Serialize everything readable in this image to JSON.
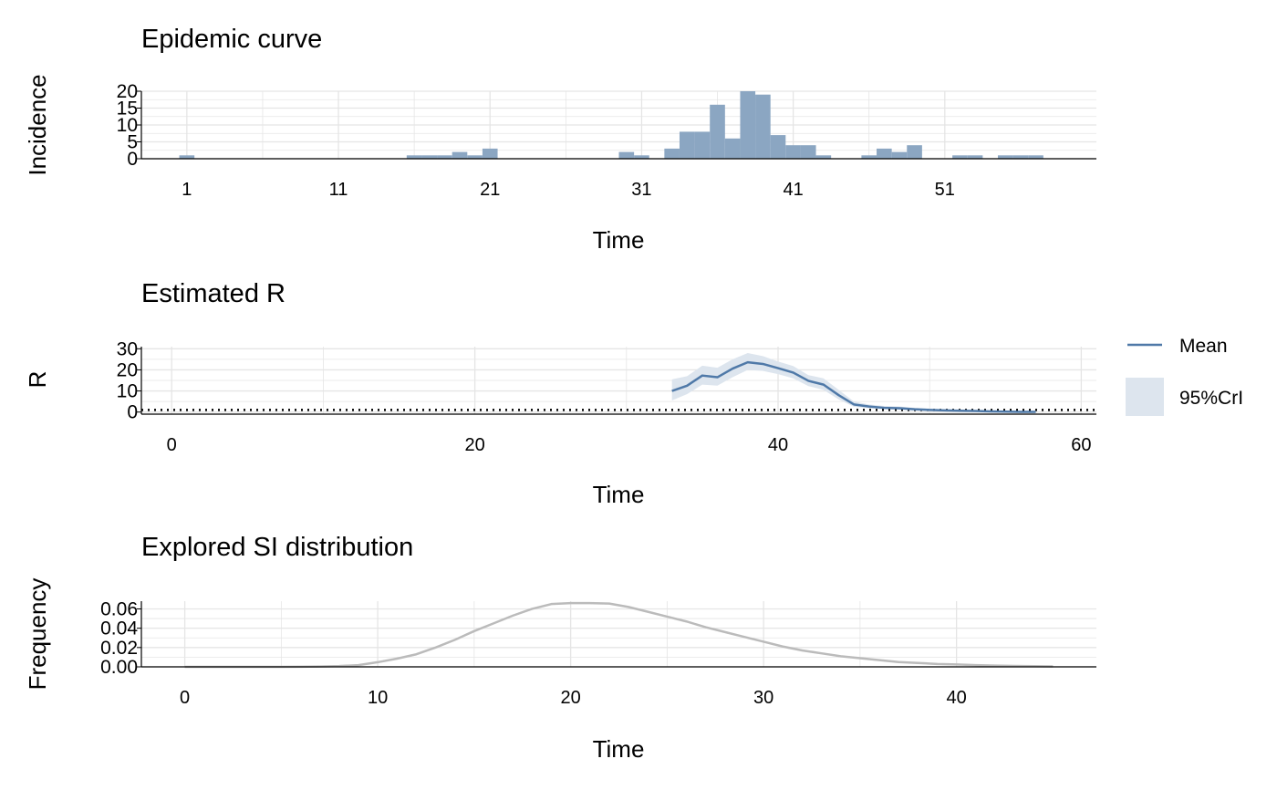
{
  "colors": {
    "bar": "#8ba6c2",
    "mean_line": "#4f79a8",
    "cri_band": "#dde5ee",
    "si_line": "#bbbbbb",
    "grid": "#e5e5e5",
    "axis": "#000000"
  },
  "chart_data": [
    {
      "type": "bar",
      "title": "Epidemic curve",
      "xlabel": "Time",
      "ylabel": "Incidence",
      "xlim": [
        -2,
        61
      ],
      "ylim": [
        0,
        20
      ],
      "x_ticks": [
        1,
        11,
        21,
        31,
        41,
        51
      ],
      "y_ticks": [
        0,
        5,
        10,
        15,
        20
      ],
      "grid": true,
      "x": [
        1,
        2,
        3,
        4,
        5,
        6,
        7,
        8,
        9,
        10,
        11,
        12,
        13,
        14,
        15,
        16,
        17,
        18,
        19,
        20,
        21,
        22,
        23,
        24,
        25,
        26,
        27,
        28,
        29,
        30,
        31,
        32,
        33,
        34,
        35,
        36,
        37,
        38,
        39,
        40,
        41,
        42,
        43,
        44,
        45,
        46,
        47,
        48,
        49,
        50,
        51,
        52,
        53,
        54,
        55,
        56,
        57
      ],
      "values": [
        1,
        0,
        0,
        0,
        0,
        0,
        0,
        0,
        0,
        0,
        0,
        0,
        0,
        0,
        0,
        1,
        1,
        1,
        2,
        1,
        3,
        0,
        0,
        0,
        0,
        0,
        0,
        0,
        0,
        2,
        1,
        0,
        3,
        8,
        8,
        16,
        6,
        20,
        19,
        7,
        4,
        4,
        1,
        0,
        0,
        1,
        3,
        2,
        4,
        0,
        0,
        1,
        1,
        0,
        1,
        1,
        1
      ]
    },
    {
      "type": "line",
      "title": "Estimated R",
      "xlabel": "Time",
      "ylabel": "R",
      "xlim": [
        -2,
        61
      ],
      "ylim": [
        -1,
        31
      ],
      "x_ticks": [
        0,
        20,
        40,
        60
      ],
      "y_ticks": [
        0,
        10,
        20,
        30
      ],
      "grid": true,
      "reference_line": 1,
      "legend_position": "right",
      "series": [
        {
          "name": "Mean",
          "x": [
            33,
            34,
            35,
            36,
            37,
            38,
            39,
            40,
            41,
            42,
            43,
            44,
            45,
            46,
            47,
            48,
            49,
            50,
            51,
            52,
            53,
            54,
            55,
            56,
            57
          ],
          "values": [
            10,
            12.5,
            17.3,
            16.5,
            20.6,
            23.6,
            22.8,
            20.8,
            18.7,
            14.8,
            13.0,
            8.0,
            3.6,
            2.6,
            2.0,
            1.8,
            1.3,
            1.0,
            0.8,
            0.6,
            0.5,
            0.3,
            0.2,
            0.1,
            0.1
          ]
        },
        {
          "name": "95%CrI",
          "x": [
            33,
            34,
            35,
            36,
            37,
            38,
            39,
            40,
            41,
            42,
            43,
            44,
            45,
            46,
            47,
            48,
            49,
            50,
            51,
            52,
            53,
            54,
            55,
            56,
            57
          ],
          "lower": [
            5.5,
            8.5,
            13.0,
            12.5,
            16.5,
            20.0,
            19.5,
            18.0,
            16.0,
            12.3,
            10.5,
            6.0,
            2.5,
            1.8,
            1.3,
            1.1,
            0.8,
            0.6,
            0.5,
            0.3,
            0.2,
            0.1,
            0.05,
            0.02,
            0.02
          ],
          "upper": [
            15.5,
            17.0,
            22.0,
            21.0,
            25.0,
            28.0,
            26.5,
            24.0,
            21.8,
            17.5,
            16.0,
            10.5,
            5.0,
            3.6,
            2.9,
            2.6,
            2.0,
            1.6,
            1.3,
            1.0,
            0.9,
            0.6,
            0.5,
            0.3,
            0.3
          ]
        }
      ]
    },
    {
      "type": "line",
      "title": "Explored SI distribution",
      "xlabel": "Time",
      "ylabel": "Frequency",
      "xlim": [
        -2.25,
        47.25
      ],
      "ylim": [
        0,
        0.068
      ],
      "x_ticks": [
        0,
        10,
        20,
        30,
        40
      ],
      "y_ticks": [
        0.0,
        0.02,
        0.04,
        0.06
      ],
      "y_tick_labels": [
        "0.00",
        "0.02",
        "0.04",
        "0.06"
      ],
      "grid": true,
      "series": [
        {
          "x": [
            0,
            1,
            2,
            3,
            4,
            5,
            6,
            7,
            8,
            9,
            10,
            11,
            12,
            13,
            14,
            15,
            16,
            17,
            18,
            19,
            20,
            21,
            22,
            23,
            24,
            25,
            26,
            27,
            28,
            29,
            30,
            31,
            32,
            33,
            34,
            35,
            36,
            37,
            38,
            39,
            40,
            41,
            42,
            43,
            44,
            45
          ],
          "values": [
            0,
            0,
            0,
            0,
            0,
            0,
            0.0001,
            0.0003,
            0.0008,
            0.0018,
            0.0048,
            0.0085,
            0.013,
            0.02,
            0.028,
            0.037,
            0.045,
            0.053,
            0.06,
            0.065,
            0.066,
            0.066,
            0.0655,
            0.062,
            0.057,
            0.052,
            0.047,
            0.041,
            0.036,
            0.031,
            0.026,
            0.021,
            0.017,
            0.014,
            0.011,
            0.009,
            0.007,
            0.005,
            0.004,
            0.003,
            0.0025,
            0.0018,
            0.0013,
            0.001,
            0.0007,
            0.0005
          ]
        }
      ]
    }
  ]
}
